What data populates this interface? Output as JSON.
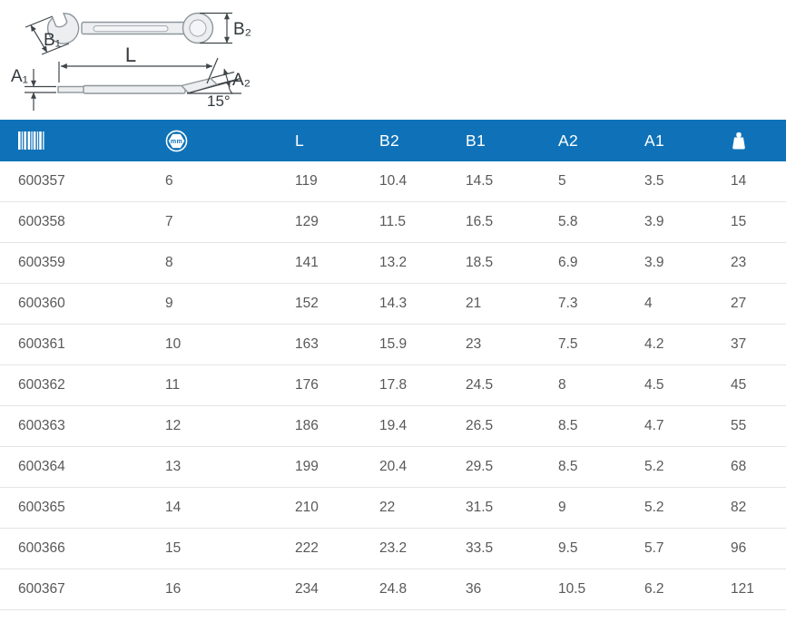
{
  "colors": {
    "header_bg": "#0f72b8",
    "row_text": "#58585a",
    "row_border": "#e4e4e4",
    "diagram_line": "#3f4549"
  },
  "diagram": {
    "labels": {
      "b1": "B₁",
      "b2": "B₂",
      "l": "L",
      "a1": "A₁",
      "a2": "A₂",
      "angle": "15°"
    }
  },
  "table": {
    "header": {
      "code_icon": "barcode-icon",
      "size_icon": "size-mm-icon",
      "size_icon_text": "mm",
      "l": "L",
      "b2": "B2",
      "b1": "B1",
      "a2": "A2",
      "a1": "A1",
      "weight_icon": "weight-icon"
    },
    "rows": [
      [
        "600357",
        "6",
        "119",
        "10.4",
        "14.5",
        "5",
        "3.5",
        "14"
      ],
      [
        "600358",
        "7",
        "129",
        "11.5",
        "16.5",
        "5.8",
        "3.9",
        "15"
      ],
      [
        "600359",
        "8",
        "141",
        "13.2",
        "18.5",
        "6.9",
        "3.9",
        "23"
      ],
      [
        "600360",
        "9",
        "152",
        "14.3",
        "21",
        "7.3",
        "4",
        "27"
      ],
      [
        "600361",
        "10",
        "163",
        "15.9",
        "23",
        "7.5",
        "4.2",
        "37"
      ],
      [
        "600362",
        "11",
        "176",
        "17.8",
        "24.5",
        "8",
        "4.5",
        "45"
      ],
      [
        "600363",
        "12",
        "186",
        "19.4",
        "26.5",
        "8.5",
        "4.7",
        "55"
      ],
      [
        "600364",
        "13",
        "199",
        "20.4",
        "29.5",
        "8.5",
        "5.2",
        "68"
      ],
      [
        "600365",
        "14",
        "210",
        "22",
        "31.5",
        "9",
        "5.2",
        "82"
      ],
      [
        "600366",
        "15",
        "222",
        "23.2",
        "33.5",
        "9.5",
        "5.7",
        "96"
      ],
      [
        "600367",
        "16",
        "234",
        "24.8",
        "36",
        "10.5",
        "6.2",
        "121"
      ]
    ]
  }
}
